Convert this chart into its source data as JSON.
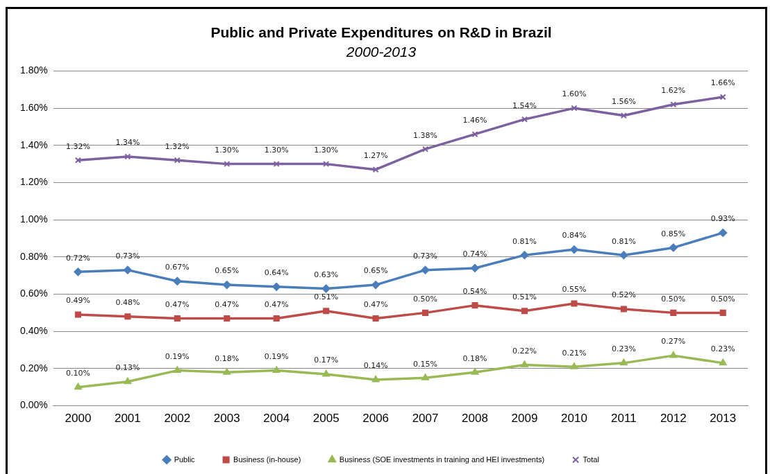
{
  "chart_data": {
    "type": "line",
    "title": "Public and Private Expenditures on R&D in Brazil",
    "subtitle": "2000-2013",
    "categories": [
      "2000",
      "2001",
      "2002",
      "2003",
      "2004",
      "2005",
      "2006",
      "2007",
      "2008",
      "2009",
      "2010",
      "2011",
      "2012",
      "2013"
    ],
    "ylim": [
      0,
      1.8
    ],
    "yticks": [
      {
        "value": 0,
        "label": "0.00%"
      },
      {
        "value": 0.2,
        "label": "0.20%"
      },
      {
        "value": 0.4,
        "label": "0.40%"
      },
      {
        "value": 0.6,
        "label": "0.60%"
      },
      {
        "value": 0.8,
        "label": "0.80%"
      },
      {
        "value": 1,
        "label": "1.00%"
      },
      {
        "value": 1.2,
        "label": "1.20%"
      },
      {
        "value": 1.4,
        "label": "1.40%"
      },
      {
        "value": 1.6,
        "label": "1.60%"
      },
      {
        "value": 1.8,
        "label": "1.80%"
      }
    ],
    "grid": "y",
    "legend": "bottom",
    "line_style": "solid",
    "series": [
      {
        "name": "Public",
        "color": "#4a7ebb",
        "marker": "diamond",
        "values": [
          0.72,
          0.73,
          0.67,
          0.65,
          0.64,
          0.63,
          0.65,
          0.73,
          0.74,
          0.81,
          0.84,
          0.81,
          0.85,
          0.93
        ],
        "value_labels": [
          "0.72%",
          "0.73%",
          "0.67%",
          "0.65%",
          "0.64%",
          "0.63%",
          "0.65%",
          "0.73%",
          "0.74%",
          "0.81%",
          "0.84%",
          "0.81%",
          "0.85%",
          "0.93%"
        ]
      },
      {
        "name": "Business (in-house)",
        "color": "#be4b48",
        "marker": "square",
        "values": [
          0.49,
          0.48,
          0.47,
          0.47,
          0.47,
          0.51,
          0.47,
          0.5,
          0.54,
          0.51,
          0.55,
          0.52,
          0.5,
          0.5
        ],
        "value_labels": [
          "0.49%",
          "0.48%",
          "0.47%",
          "0.47%",
          "0.47%",
          "0.51%",
          "0.47%",
          "0.50%",
          "0.54%",
          "0.51%",
          "0.55%",
          "0.52%",
          "0.50%",
          "0.50%"
        ]
      },
      {
        "name": "Business (SOE investments in training and HEI investments)",
        "color": "#98b954",
        "marker": "triangle",
        "values": [
          0.1,
          0.13,
          0.19,
          0.18,
          0.19,
          0.17,
          0.14,
          0.15,
          0.18,
          0.22,
          0.21,
          0.23,
          0.27,
          0.23
        ],
        "value_labels": [
          "0.10%",
          "0.13%",
          "0.19%",
          "0.18%",
          "0.19%",
          "0.17%",
          "0.14%",
          "0.15%",
          "0.18%",
          "0.22%",
          "0.21%",
          "0.23%",
          "0.27%",
          "0.23%"
        ]
      },
      {
        "name": "Total",
        "color": "#7d60a0",
        "marker": "cross",
        "values": [
          1.32,
          1.34,
          1.32,
          1.3,
          1.3,
          1.3,
          1.27,
          1.38,
          1.46,
          1.54,
          1.6,
          1.56,
          1.62,
          1.66
        ],
        "value_labels": [
          "1.32%",
          "1.34%",
          "1.32%",
          "1.30%",
          "1.30%",
          "1.30%",
          "1.27%",
          "1.38%",
          "1.46%",
          "1.54%",
          "1.60%",
          "1.56%",
          "1.62%",
          "1.66%"
        ]
      }
    ]
  }
}
